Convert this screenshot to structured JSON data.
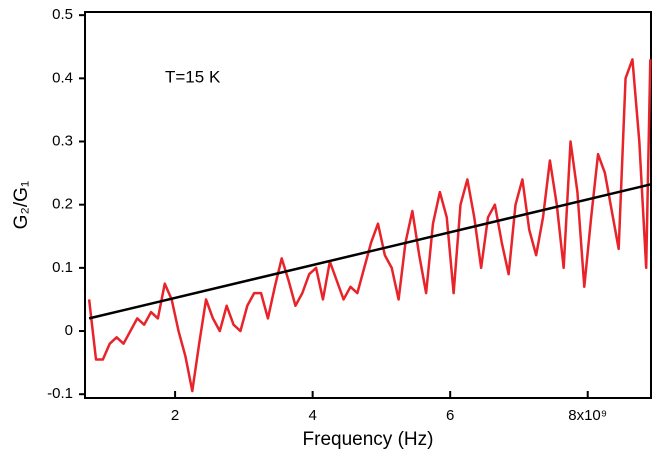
{
  "chart_data": {
    "type": "line",
    "xlabel": "Frequency (Hz)",
    "ylabel": "G₂/G₁",
    "annotation": "T=15 K",
    "xlim": [
      0.69,
      8.92
    ],
    "ylim": [
      -0.106,
      0.505
    ],
    "xticks": [
      2,
      4,
      6,
      {
        "value": 8,
        "label": "8x10⁹"
      }
    ],
    "yticks": [
      -0.1,
      0,
      0.1,
      0.2,
      0.3,
      0.4,
      0.5
    ],
    "series": [
      {
        "color": "#e8232a",
        "x": [
          0.75,
          0.85,
          0.95,
          1.05,
          1.15,
          1.25,
          1.35,
          1.45,
          1.55,
          1.65,
          1.75,
          1.85,
          1.95,
          2.05,
          2.15,
          2.25,
          2.35,
          2.45,
          2.55,
          2.65,
          2.75,
          2.85,
          2.95,
          3.05,
          3.15,
          3.25,
          3.35,
          3.45,
          3.55,
          3.65,
          3.75,
          3.85,
          3.95,
          4.05,
          4.15,
          4.25,
          4.35,
          4.45,
          4.55,
          4.65,
          4.75,
          4.85,
          4.95,
          5.05,
          5.15,
          5.25,
          5.35,
          5.45,
          5.55,
          5.65,
          5.75,
          5.85,
          5.95,
          6.05,
          6.15,
          6.25,
          6.35,
          6.45,
          6.55,
          6.65,
          6.75,
          6.85,
          6.95,
          7.05,
          7.15,
          7.25,
          7.35,
          7.45,
          7.55,
          7.65,
          7.75,
          7.85,
          7.95,
          8.05,
          8.15,
          8.25,
          8.35,
          8.45,
          8.55,
          8.65,
          8.75,
          8.85,
          8.91
        ],
        "values": [
          0.05,
          -0.045,
          -0.045,
          -0.02,
          -0.01,
          -0.02,
          0.0,
          0.02,
          0.01,
          0.03,
          0.02,
          0.075,
          0.05,
          0.0,
          -0.04,
          -0.095,
          -0.02,
          0.05,
          0.02,
          0.0,
          0.04,
          0.01,
          0.0,
          0.04,
          0.06,
          0.06,
          0.02,
          0.07,
          0.115,
          0.08,
          0.04,
          0.06,
          0.09,
          0.1,
          0.05,
          0.11,
          0.08,
          0.05,
          0.07,
          0.06,
          0.1,
          0.14,
          0.17,
          0.12,
          0.1,
          0.05,
          0.14,
          0.19,
          0.12,
          0.06,
          0.17,
          0.22,
          0.18,
          0.06,
          0.2,
          0.24,
          0.18,
          0.1,
          0.18,
          0.2,
          0.14,
          0.09,
          0.2,
          0.24,
          0.16,
          0.12,
          0.18,
          0.27,
          0.2,
          0.1,
          0.3,
          0.22,
          0.07,
          0.18,
          0.28,
          0.25,
          0.19,
          0.13,
          0.4,
          0.43,
          0.3,
          0.1,
          0.43
        ]
      },
      {
        "color": "#000000",
        "x": [
          0.75,
          8.91
        ],
        "values": [
          0.02,
          0.232
        ]
      }
    ]
  }
}
